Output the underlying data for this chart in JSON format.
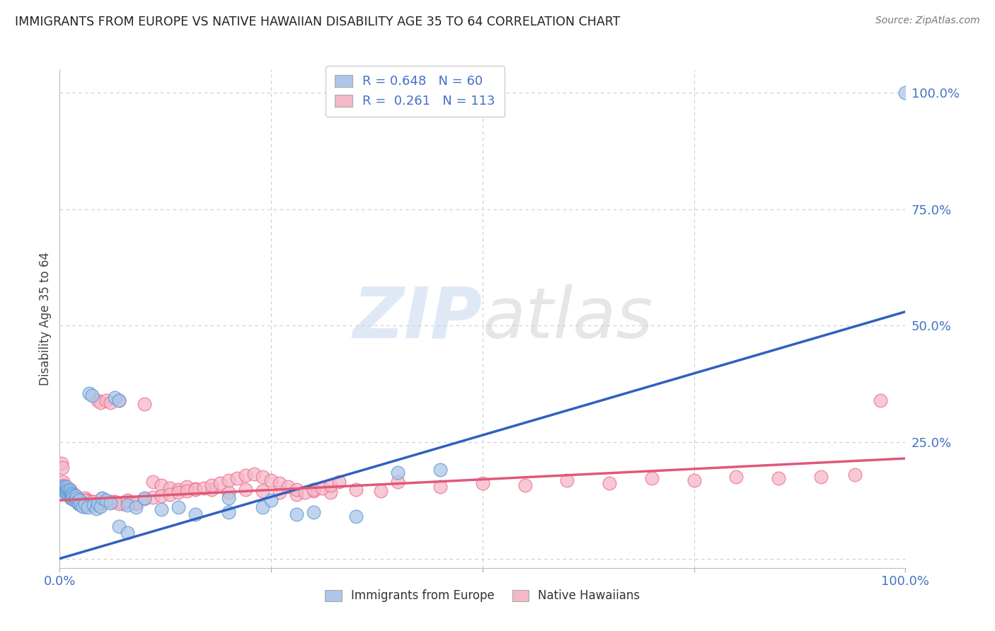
{
  "title": "IMMIGRANTS FROM EUROPE VS NATIVE HAWAIIAN DISABILITY AGE 35 TO 64 CORRELATION CHART",
  "source": "Source: ZipAtlas.com",
  "ylabel": "Disability Age 35 to 64",
  "legend_label_1": "Immigrants from Europe",
  "legend_label_2": "Native Hawaiians",
  "blue_color": "#5b9bd5",
  "pink_color": "#f07090",
  "blue_fill": "#aec6e8",
  "pink_fill": "#f4b8c8",
  "blue_line_color": "#3060c0",
  "pink_line_color": "#e05878",
  "watermark_zip": "ZIP",
  "watermark_atlas": "atlas",
  "background_color": "#ffffff",
  "grid_color": "#cccccc",
  "title_color": "#222222",
  "source_color": "#777777",
  "axis_label_color": "#4472c4",
  "blue_line_y_start": 0.0,
  "blue_line_y_end": 0.53,
  "pink_line_y_start": 0.125,
  "pink_line_y_end": 0.215,
  "xlim": [
    0.0,
    1.0
  ],
  "ylim": [
    -0.02,
    1.05
  ],
  "blue_scatter_x": [
    0.003,
    0.004,
    0.005,
    0.006,
    0.007,
    0.007,
    0.008,
    0.008,
    0.009,
    0.01,
    0.01,
    0.011,
    0.012,
    0.012,
    0.013,
    0.013,
    0.014,
    0.015,
    0.015,
    0.016,
    0.017,
    0.018,
    0.019,
    0.02,
    0.021,
    0.022,
    0.023,
    0.025,
    0.027,
    0.03,
    0.033,
    0.035,
    0.038,
    0.04,
    0.043,
    0.045,
    0.048,
    0.05,
    0.055,
    0.06,
    0.065,
    0.07,
    0.08,
    0.09,
    0.1,
    0.12,
    0.14,
    0.16,
    0.2,
    0.24,
    0.28,
    0.3,
    0.35,
    0.4,
    0.45,
    0.2,
    0.25,
    0.07,
    0.08,
    1.0
  ],
  "blue_scatter_y": [
    0.155,
    0.148,
    0.152,
    0.145,
    0.15,
    0.14,
    0.155,
    0.143,
    0.148,
    0.145,
    0.138,
    0.142,
    0.147,
    0.135,
    0.14,
    0.13,
    0.138,
    0.135,
    0.128,
    0.132,
    0.125,
    0.13,
    0.135,
    0.128,
    0.122,
    0.118,
    0.125,
    0.115,
    0.112,
    0.118,
    0.11,
    0.355,
    0.35,
    0.115,
    0.108,
    0.118,
    0.112,
    0.13,
    0.125,
    0.12,
    0.345,
    0.34,
    0.115,
    0.11,
    0.13,
    0.105,
    0.11,
    0.095,
    0.1,
    0.11,
    0.095,
    0.1,
    0.09,
    0.185,
    0.19,
    0.13,
    0.125,
    0.07,
    0.055,
    1.0
  ],
  "pink_scatter_x": [
    0.002,
    0.003,
    0.004,
    0.005,
    0.005,
    0.006,
    0.007,
    0.007,
    0.008,
    0.008,
    0.009,
    0.01,
    0.01,
    0.011,
    0.012,
    0.012,
    0.013,
    0.013,
    0.014,
    0.015,
    0.015,
    0.016,
    0.017,
    0.018,
    0.019,
    0.02,
    0.021,
    0.022,
    0.023,
    0.024,
    0.025,
    0.026,
    0.027,
    0.028,
    0.029,
    0.03,
    0.032,
    0.034,
    0.036,
    0.038,
    0.04,
    0.042,
    0.045,
    0.048,
    0.05,
    0.055,
    0.06,
    0.065,
    0.07,
    0.075,
    0.08,
    0.09,
    0.1,
    0.11,
    0.12,
    0.13,
    0.14,
    0.15,
    0.16,
    0.18,
    0.2,
    0.22,
    0.24,
    0.26,
    0.28,
    0.3,
    0.32,
    0.35,
    0.38,
    0.4,
    0.45,
    0.5,
    0.55,
    0.6,
    0.65,
    0.7,
    0.75,
    0.8,
    0.85,
    0.9,
    0.94,
    0.97,
    0.03,
    0.04,
    0.05,
    0.06,
    0.07,
    0.08,
    0.09,
    0.1,
    0.11,
    0.12,
    0.13,
    0.14,
    0.15,
    0.16,
    0.17,
    0.18,
    0.19,
    0.2,
    0.21,
    0.22,
    0.23,
    0.24,
    0.25,
    0.26,
    0.27,
    0.28,
    0.29,
    0.3,
    0.31,
    0.32,
    0.33
  ],
  "pink_scatter_y": [
    0.205,
    0.195,
    0.165,
    0.158,
    0.148,
    0.155,
    0.15,
    0.142,
    0.148,
    0.14,
    0.145,
    0.148,
    0.138,
    0.142,
    0.148,
    0.135,
    0.142,
    0.13,
    0.138,
    0.135,
    0.128,
    0.132,
    0.138,
    0.125,
    0.13,
    0.128,
    0.122,
    0.118,
    0.128,
    0.12,
    0.118,
    0.122,
    0.115,
    0.118,
    0.112,
    0.13,
    0.125,
    0.122,
    0.118,
    0.122,
    0.118,
    0.115,
    0.34,
    0.335,
    0.128,
    0.34,
    0.335,
    0.122,
    0.34,
    0.118,
    0.122,
    0.118,
    0.332,
    0.165,
    0.158,
    0.152,
    0.148,
    0.155,
    0.15,
    0.148,
    0.142,
    0.148,
    0.145,
    0.142,
    0.138,
    0.145,
    0.142,
    0.148,
    0.145,
    0.165,
    0.155,
    0.162,
    0.158,
    0.168,
    0.162,
    0.172,
    0.168,
    0.175,
    0.172,
    0.175,
    0.18,
    0.34,
    0.125,
    0.122,
    0.118,
    0.122,
    0.118,
    0.125,
    0.12,
    0.128,
    0.132,
    0.135,
    0.138,
    0.142,
    0.145,
    0.148,
    0.152,
    0.158,
    0.162,
    0.168,
    0.172,
    0.178,
    0.182,
    0.175,
    0.168,
    0.162,
    0.155,
    0.148,
    0.142,
    0.148,
    0.152,
    0.158,
    0.165
  ]
}
